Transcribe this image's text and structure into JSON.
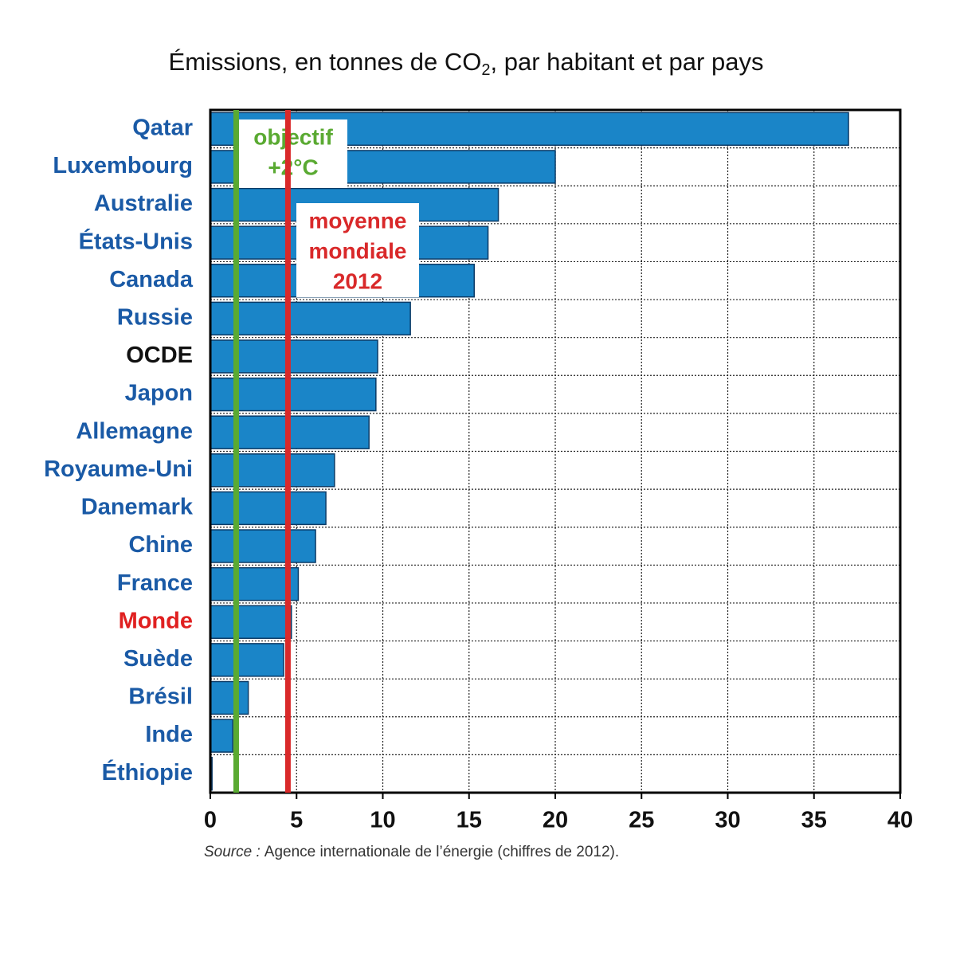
{
  "chart_data": {
    "type": "bar",
    "orientation": "horizontal",
    "title": {
      "before": "Émissions, en tonnes de CO",
      "subscript": "2",
      "after": ", par habitant et par pays"
    },
    "categories": [
      "Qatar",
      "Luxembourg",
      "Australie",
      "États-Unis",
      "Canada",
      "Russie",
      "OCDE",
      "Japon",
      "Allemagne",
      "Royaume-Uni",
      "Danemark",
      "Chine",
      "France",
      "Monde",
      "Suède",
      "Brésil",
      "Inde",
      "Éthiopie"
    ],
    "label_colors": [
      "#1a5aa6",
      "#1a5aa6",
      "#1a5aa6",
      "#1a5aa6",
      "#1a5aa6",
      "#1a5aa6",
      "#111111",
      "#1a5aa6",
      "#1a5aa6",
      "#1a5aa6",
      "#1a5aa6",
      "#1a5aa6",
      "#1a5aa6",
      "#e02020",
      "#1a5aa6",
      "#1a5aa6",
      "#1a5aa6",
      "#1a5aa6"
    ],
    "values": [
      37,
      20,
      16.7,
      16.1,
      15.3,
      11.6,
      9.7,
      9.6,
      9.2,
      7.2,
      6.7,
      6.1,
      5.1,
      4.7,
      4.25,
      2.2,
      1.3,
      0.1
    ],
    "color": "#1a85c8",
    "xlim": [
      0,
      40
    ],
    "xticks": [
      0,
      5,
      10,
      15,
      20,
      25,
      30,
      35,
      40
    ],
    "grid": true,
    "reference_lines": [
      {
        "value": 1.5,
        "color": "#5aaa32",
        "lines": [
          "objectif",
          "+2°C"
        ]
      },
      {
        "value": 4.5,
        "color": "#d9292a",
        "lines": [
          "moyenne",
          "mondiale",
          "2012"
        ]
      }
    ],
    "source_label": "Source :",
    "source_text": "Agence internationale de l’énergie (chiffres de 2012)."
  }
}
